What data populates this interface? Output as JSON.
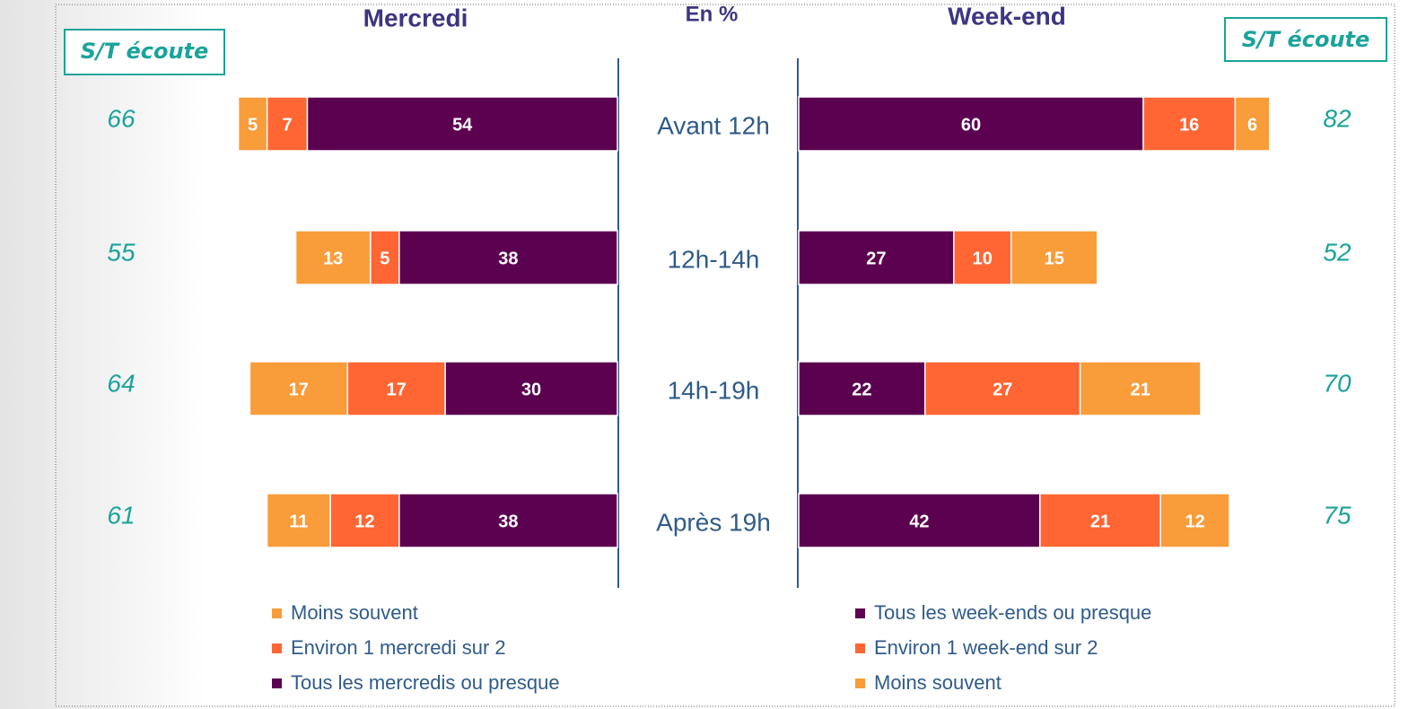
{
  "unit_label": "En %",
  "chart_data": [
    {
      "type": "bar",
      "orientation": "horizontal",
      "stacked": true,
      "direction": "left",
      "legend_reversed": true,
      "title": "Mercredi",
      "categories": [
        "Avant 12h",
        "12h-14h",
        "14h-19h",
        "Après 19h"
      ],
      "xlim": [
        0,
        100
      ],
      "series": [
        {
          "name": "Tous les mercredis ou presque",
          "color": "#5c0050",
          "values": [
            54,
            38,
            30,
            38
          ]
        },
        {
          "name": "Environ 1 mercredi sur 2",
          "color": "#ff6633",
          "values": [
            7,
            5,
            17,
            12
          ]
        },
        {
          "name": "Moins souvent",
          "color": "#f99c3a",
          "values": [
            5,
            13,
            17,
            11
          ]
        }
      ],
      "totals_label": "S/T écoute",
      "totals": [
        66,
        55,
        64,
        61
      ]
    },
    {
      "type": "bar",
      "orientation": "horizontal",
      "stacked": true,
      "direction": "right",
      "legend_reversed": false,
      "title": "Week-end",
      "xlim": [
        0,
        100
      ],
      "series": [
        {
          "name": "Tous les week-ends ou presque",
          "color": "#5c0050",
          "values": [
            60,
            27,
            22,
            42
          ]
        },
        {
          "name": "Environ 1 week-end sur 2",
          "color": "#ff6633",
          "values": [
            16,
            10,
            27,
            21
          ]
        },
        {
          "name": "Moins souvent",
          "color": "#f99c3a",
          "values": [
            6,
            15,
            21,
            12
          ]
        }
      ],
      "totals_label": "S/T écoute",
      "totals": [
        82,
        52,
        70,
        75
      ]
    }
  ]
}
